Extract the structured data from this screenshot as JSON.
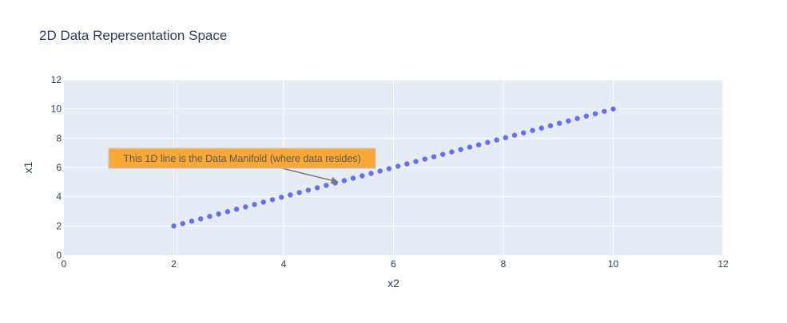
{
  "chart_data": {
    "type": "scatter",
    "title": "2D Data Repersentation Space",
    "xlabel": "x2",
    "ylabel": "x1",
    "xlim": [
      0,
      12
    ],
    "ylim": [
      0,
      12
    ],
    "xticks": [
      0,
      2,
      4,
      6,
      8,
      10,
      12
    ],
    "yticks": [
      0,
      2,
      4,
      6,
      8,
      10,
      12
    ],
    "grid": true,
    "series": [
      {
        "color": "#636efa",
        "x": [
          2.0,
          2.163,
          2.327,
          2.49,
          2.653,
          2.816,
          2.98,
          3.143,
          3.306,
          3.469,
          3.633,
          3.796,
          3.959,
          4.122,
          4.286,
          4.449,
          4.612,
          4.776,
          4.939,
          5.102,
          5.265,
          5.429,
          5.592,
          5.755,
          5.918,
          6.082,
          6.245,
          6.408,
          6.571,
          6.735,
          6.898,
          7.061,
          7.224,
          7.388,
          7.551,
          7.714,
          7.878,
          8.041,
          8.204,
          8.367,
          8.531,
          8.694,
          8.857,
          9.02,
          9.184,
          9.347,
          9.51,
          9.673,
          9.837,
          10.0
        ],
        "y": [
          2.0,
          2.163,
          2.327,
          2.49,
          2.653,
          2.816,
          2.98,
          3.143,
          3.306,
          3.469,
          3.633,
          3.796,
          3.959,
          4.122,
          4.286,
          4.449,
          4.612,
          4.776,
          4.939,
          5.102,
          5.265,
          5.429,
          5.592,
          5.755,
          5.918,
          6.082,
          6.245,
          6.408,
          6.571,
          6.735,
          6.898,
          7.061,
          7.224,
          7.388,
          7.551,
          7.714,
          7.878,
          8.041,
          8.204,
          8.367,
          8.531,
          8.694,
          8.857,
          9.02,
          9.184,
          9.347,
          9.51,
          9.673,
          9.837,
          10.0
        ]
      }
    ],
    "annotation": {
      "text": "This 1D line is the Data Manifold (where data resides)",
      "x": 5,
      "y": 5,
      "bgcolor": "#f7a934",
      "bordercolor": "#c8c8c8",
      "arrowcolor": "#777777"
    }
  }
}
